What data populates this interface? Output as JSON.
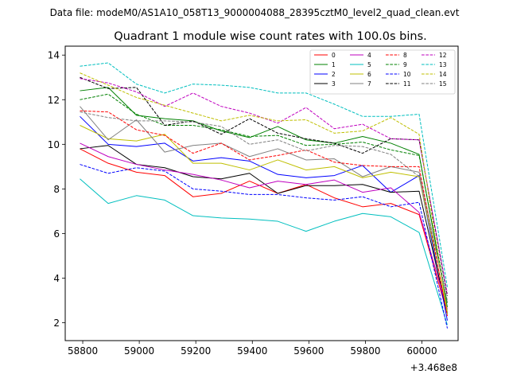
{
  "figure": {
    "suptitle": "Data file: modeM0/AS1A10_058T13_9000004088_28395cztM0_level2_quad_clean.evt"
  },
  "chart_data": {
    "type": "line",
    "title": "Quadrant 1 module wise count rates with 100.0s bins.",
    "xlabel": "",
    "ylabel": "",
    "x_offset_label": "+3.468e8",
    "xlim": [
      58738,
      60128
    ],
    "ylim": [
      1.2,
      14.4
    ],
    "xticks": [
      58800,
      59000,
      59200,
      59400,
      59600,
      59800,
      60000
    ],
    "xtick_labels": [
      "58800",
      "59000",
      "59200",
      "59400",
      "59600",
      "59800",
      "60000"
    ],
    "yticks": [
      2,
      4,
      6,
      8,
      10,
      12,
      14
    ],
    "ytick_labels": [
      "2",
      "4",
      "6",
      "8",
      "10",
      "12",
      "14"
    ],
    "grid": false,
    "legend": {
      "placement": "top-right",
      "ncol": 4
    },
    "x": [
      58790,
      58890,
      58990,
      59090,
      59190,
      59290,
      59390,
      59490,
      59590,
      59690,
      59790,
      59890,
      59990,
      60090
    ],
    "series": [
      {
        "name": "0",
        "color": "#ff0000",
        "dash": "solid",
        "values": [
          9.8,
          9.15,
          8.75,
          8.6,
          7.65,
          7.8,
          8.35,
          7.8,
          8.2,
          7.6,
          7.2,
          7.35,
          6.85,
          2.4
        ]
      },
      {
        "name": "1",
        "color": "#008000",
        "dash": "solid",
        "values": [
          12.4,
          12.55,
          11.3,
          11.15,
          11.05,
          10.6,
          10.3,
          10.8,
          10.2,
          10.05,
          10.35,
          10.05,
          9.55,
          2.7
        ]
      },
      {
        "name": "2",
        "color": "#0000ff",
        "dash": "solid",
        "values": [
          11.25,
          10.0,
          9.9,
          10.05,
          9.25,
          9.4,
          9.25,
          8.65,
          8.5,
          8.6,
          9.05,
          7.85,
          8.6,
          2.1
        ]
      },
      {
        "name": "3",
        "color": "#000000",
        "dash": "solid",
        "values": [
          9.8,
          9.95,
          9.1,
          8.95,
          8.55,
          8.45,
          8.7,
          7.8,
          8.15,
          8.15,
          8.2,
          7.85,
          7.9,
          2.4
        ]
      },
      {
        "name": "4",
        "color": "#bf00bf",
        "dash": "solid",
        "values": [
          10.05,
          9.45,
          9.1,
          8.85,
          8.65,
          8.4,
          8.05,
          8.35,
          8.2,
          8.4,
          7.85,
          8.05,
          6.95,
          2.6
        ]
      },
      {
        "name": "5",
        "color": "#00bfbf",
        "dash": "solid",
        "values": [
          8.45,
          7.35,
          7.7,
          7.5,
          6.8,
          6.7,
          6.65,
          6.55,
          6.1,
          6.55,
          6.9,
          6.75,
          6.05,
          1.9
        ]
      },
      {
        "name": "6",
        "color": "#bfbf00",
        "dash": "solid",
        "values": [
          10.85,
          10.25,
          10.15,
          10.45,
          9.15,
          9.15,
          8.85,
          9.3,
          8.85,
          9.0,
          8.5,
          8.75,
          8.55,
          2.5
        ]
      },
      {
        "name": "7",
        "color": "#808080",
        "dash": "solid",
        "values": [
          11.7,
          10.2,
          11.1,
          9.65,
          9.95,
          10.05,
          9.45,
          9.8,
          9.3,
          9.35,
          8.55,
          9.0,
          8.75,
          2.9
        ]
      },
      {
        "name": "8",
        "color": "#ff0000",
        "dash": "dashed",
        "values": [
          11.5,
          11.45,
          10.65,
          10.4,
          9.6,
          10.05,
          9.3,
          9.5,
          9.75,
          9.2,
          9.05,
          9.0,
          9.0,
          2.3
        ]
      },
      {
        "name": "9",
        "color": "#008000",
        "dash": "dashed",
        "values": [
          12.0,
          12.25,
          11.35,
          10.85,
          10.85,
          10.65,
          10.35,
          10.4,
          9.95,
          10.0,
          10.1,
          9.75,
          9.5,
          2.9
        ]
      },
      {
        "name": "10",
        "color": "#0000ff",
        "dash": "dashed",
        "values": [
          9.1,
          8.7,
          8.95,
          8.8,
          8.0,
          7.9,
          7.75,
          7.75,
          7.6,
          7.5,
          7.65,
          7.2,
          7.4,
          1.75
        ]
      },
      {
        "name": "11",
        "color": "#000000",
        "dash": "dashed",
        "values": [
          13.0,
          12.5,
          12.55,
          10.85,
          11.05,
          10.45,
          11.15,
          10.5,
          10.25,
          10.05,
          9.6,
          10.25,
          10.2,
          3.2
        ]
      },
      {
        "name": "12",
        "color": "#bf00bf",
        "dash": "dashed",
        "values": [
          12.95,
          12.75,
          12.35,
          11.7,
          12.3,
          11.7,
          11.4,
          10.95,
          11.65,
          10.7,
          10.9,
          10.25,
          10.2,
          3.3
        ]
      },
      {
        "name": "13",
        "color": "#00bfbf",
        "dash": "dashed",
        "values": [
          13.5,
          13.65,
          12.7,
          12.3,
          12.7,
          12.65,
          12.55,
          12.3,
          12.3,
          11.8,
          11.25,
          11.25,
          11.35,
          3.6
        ]
      },
      {
        "name": "14",
        "color": "#bfbf00",
        "dash": "dashed",
        "values": [
          13.2,
          12.65,
          12.1,
          11.75,
          11.4,
          11.05,
          11.3,
          11.05,
          11.1,
          10.5,
          10.6,
          11.2,
          10.45,
          2.4
        ]
      },
      {
        "name": "15",
        "color": "#808080",
        "dash": "dashed",
        "values": [
          11.45,
          11.2,
          11.05,
          11.05,
          11.0,
          10.8,
          10.0,
          10.2,
          9.7,
          9.95,
          9.9,
          9.55,
          8.55,
          3.0
        ]
      }
    ]
  }
}
